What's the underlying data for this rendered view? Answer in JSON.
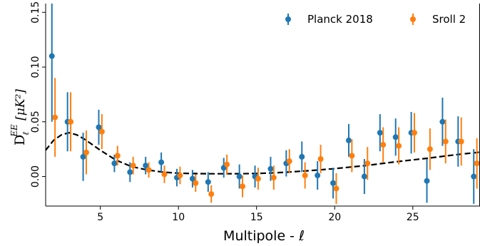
{
  "chart_data": {
    "type": "scatter",
    "xlabel": "Multipole - ℓ",
    "ylabel": {
      "main": "D",
      "sub": "ℓ",
      "sup": "EE",
      "unit": " [μK²]"
    },
    "xlim": [
      1.5,
      29.3
    ],
    "ylim": [
      -0.027,
      0.158
    ],
    "xticks": [
      5,
      10,
      15,
      20,
      25
    ],
    "xtick_labels": [
      "5",
      "10",
      "15",
      "20",
      "25"
    ],
    "yticks": [
      0.0,
      0.05,
      0.1,
      0.15
    ],
    "ytick_labels": [
      "0.00",
      "0.05",
      "0.10",
      "0.15"
    ],
    "grid": false,
    "legend_position": "top-right",
    "series": [
      {
        "name": "Planck 2018",
        "color": "#1f77b4",
        "x_offset": -0.1,
        "x": [
          2,
          3,
          4,
          5,
          6,
          7,
          8,
          9,
          10,
          11,
          12,
          13,
          14,
          15,
          16,
          17,
          18,
          19,
          20,
          21,
          22,
          23,
          24,
          25,
          26,
          27,
          28,
          29
        ],
        "y": [
          0.11,
          0.05,
          0.018,
          0.045,
          0.012,
          0.004,
          0.01,
          0.013,
          -0.001,
          -0.002,
          -0.005,
          0.008,
          0.0,
          0.0,
          0.007,
          0.012,
          0.018,
          0.001,
          -0.006,
          0.033,
          0.0,
          0.04,
          0.036,
          0.04,
          -0.004,
          0.05,
          0.032,
          0.0
        ],
        "err": [
          0.06,
          0.027,
          0.022,
          0.016,
          0.008,
          0.009,
          0.008,
          0.009,
          0.008,
          0.008,
          0.009,
          0.009,
          0.011,
          0.01,
          0.011,
          0.012,
          0.014,
          0.013,
          0.014,
          0.015,
          0.016,
          0.017,
          0.017,
          0.019,
          0.02,
          0.022,
          0.023,
          0.025
        ]
      },
      {
        "name": "Sroll 2",
        "color": "#ff7f0e",
        "x_offset": 0.1,
        "x": [
          2,
          3,
          4,
          5,
          6,
          7,
          8,
          9,
          10,
          11,
          12,
          13,
          14,
          15,
          16,
          17,
          18,
          19,
          20,
          21,
          22,
          23,
          24,
          25,
          26,
          27,
          28,
          29
        ],
        "y": [
          0.054,
          0.05,
          0.022,
          0.041,
          0.019,
          0.01,
          0.006,
          0.002,
          0.001,
          -0.006,
          -0.016,
          0.011,
          -0.009,
          -0.002,
          -0.001,
          0.014,
          0.001,
          0.016,
          -0.011,
          0.019,
          0.012,
          0.029,
          0.028,
          0.04,
          0.025,
          0.032,
          0.032,
          0.012
        ],
        "err": [
          0.036,
          0.027,
          0.02,
          0.016,
          0.009,
          0.008,
          0.007,
          0.008,
          0.008,
          0.008,
          0.008,
          0.009,
          0.01,
          0.01,
          0.011,
          0.011,
          0.012,
          0.013,
          0.014,
          0.015,
          0.015,
          0.016,
          0.017,
          0.018,
          0.019,
          0.02,
          0.022,
          0.023
        ]
      }
    ],
    "model_curve": {
      "style": "dashed",
      "color": "#000000",
      "x": [
        1.5,
        2,
        2.5,
        3,
        3.5,
        4,
        5,
        6,
        7,
        8,
        9,
        10,
        11,
        12,
        13,
        14,
        15,
        16,
        17,
        18,
        19,
        20,
        21,
        22,
        23,
        24,
        25,
        26,
        27,
        28,
        29,
        29.3
      ],
      "y": [
        0.024,
        0.033,
        0.038,
        0.04,
        0.038,
        0.034,
        0.024,
        0.015,
        0.009,
        0.006,
        0.004,
        0.003,
        0.0027,
        0.0025,
        0.0025,
        0.0026,
        0.0028,
        0.0033,
        0.004,
        0.005,
        0.006,
        0.0072,
        0.0086,
        0.01,
        0.0118,
        0.0136,
        0.0152,
        0.0168,
        0.0186,
        0.0203,
        0.0218,
        0.0223
      ]
    }
  }
}
